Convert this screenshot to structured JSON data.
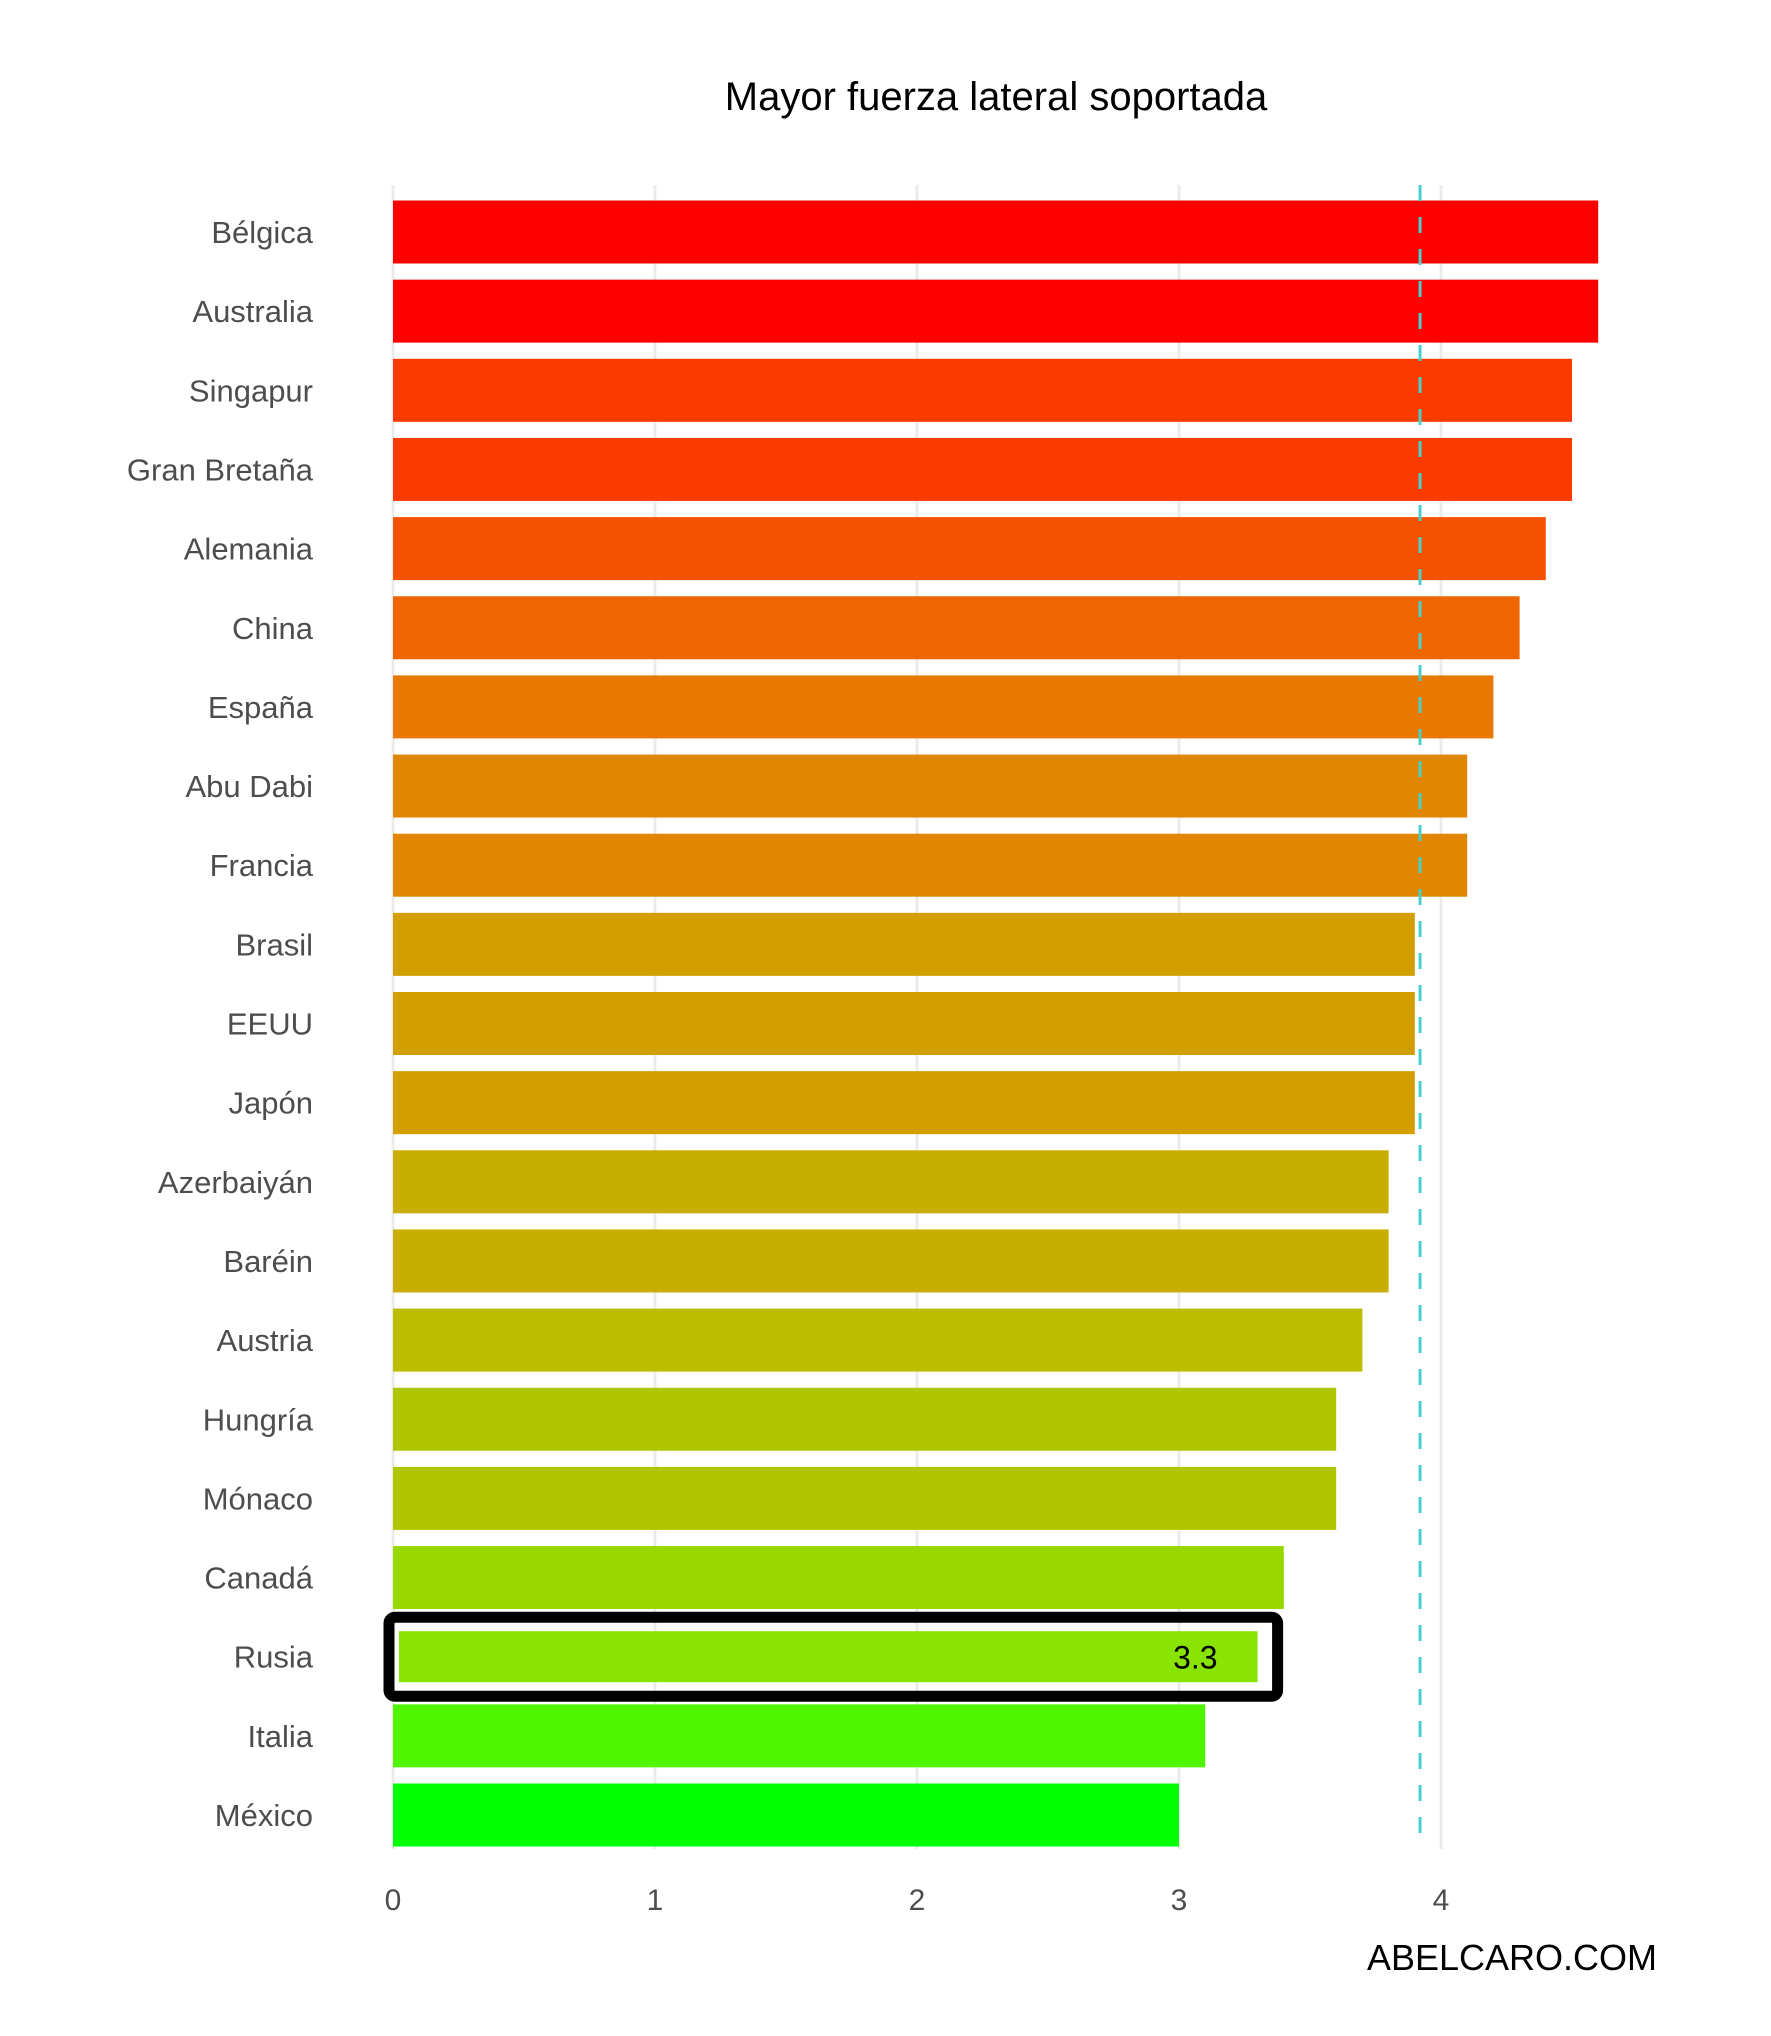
{
  "chart_data": {
    "type": "bar",
    "orientation": "horizontal",
    "title": "Mayor fuerza lateral soportada",
    "xlabel": "",
    "ylabel": "",
    "xlim": [
      0,
      4.6
    ],
    "x_ticks": [
      "0",
      "1",
      "2",
      "3",
      "4"
    ],
    "grid": "vertical major gridlines",
    "categories": [
      "Bélgica",
      "Australia",
      "Singapur",
      "Gran Bretaña",
      "Alemania",
      "China",
      "España",
      "Abu Dabi",
      "Francia",
      "Brasil",
      "EEUU",
      "Japón",
      "Azerbaiyán",
      "Baréin",
      "Austria",
      "Hungría",
      "Mónaco",
      "Canadá",
      "Rusia",
      "Italia",
      "México"
    ],
    "values": [
      4.6,
      4.6,
      4.5,
      4.5,
      4.4,
      4.3,
      4.2,
      4.1,
      4.1,
      3.9,
      3.9,
      3.9,
      3.8,
      3.8,
      3.7,
      3.6,
      3.6,
      3.4,
      3.3,
      3.1,
      3.0
    ],
    "colors": [
      "#ff0000",
      "#ff0000",
      "#fb3a00",
      "#fb3a00",
      "#f55200",
      "#ef6600",
      "#e87800",
      "#e18600",
      "#e18600",
      "#d29e00",
      "#d29e00",
      "#d29e00",
      "#c8ae00",
      "#c8ae00",
      "#bcbc00",
      "#b0c600",
      "#b0c600",
      "#98d800",
      "#88e400",
      "#50f600",
      "#00ff00"
    ],
    "highlight": {
      "category": "Rusia",
      "label": "3.3"
    },
    "reference_line": {
      "value": 3.92,
      "style": "dashed",
      "color": "#48d1cc"
    },
    "watermark": "ABELCARO.COM"
  }
}
